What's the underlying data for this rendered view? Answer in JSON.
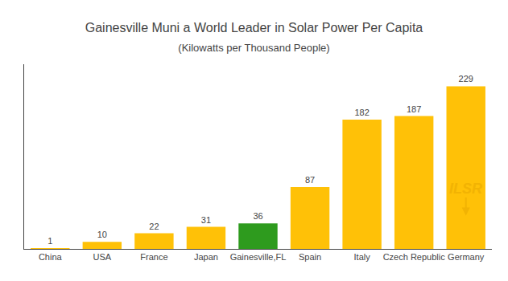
{
  "chart_data": {
    "type": "bar",
    "title": "Gainesville Muni a World Leader in Solar Power Per Capita",
    "subtitle": "(Kilowatts per Thousand People)",
    "categories": [
      "China",
      "USA",
      "France",
      "Japan",
      "Gainesville,FL",
      "Spain",
      "Italy",
      "Czech Republic",
      "Germany"
    ],
    "values": [
      1,
      10,
      22,
      31,
      36,
      87,
      182,
      187,
      229
    ],
    "colors": [
      "#FFC107",
      "#FFC107",
      "#FFC107",
      "#FFC107",
      "#2E9B1E",
      "#FFC107",
      "#FFC107",
      "#FFC107",
      "#FFC107"
    ],
    "ylim": [
      0,
      260
    ],
    "grid": false,
    "data_labels": true,
    "tick_labels": "x",
    "annotations": [
      {
        "text": "ILSR",
        "color": "#E8A800"
      }
    ]
  }
}
